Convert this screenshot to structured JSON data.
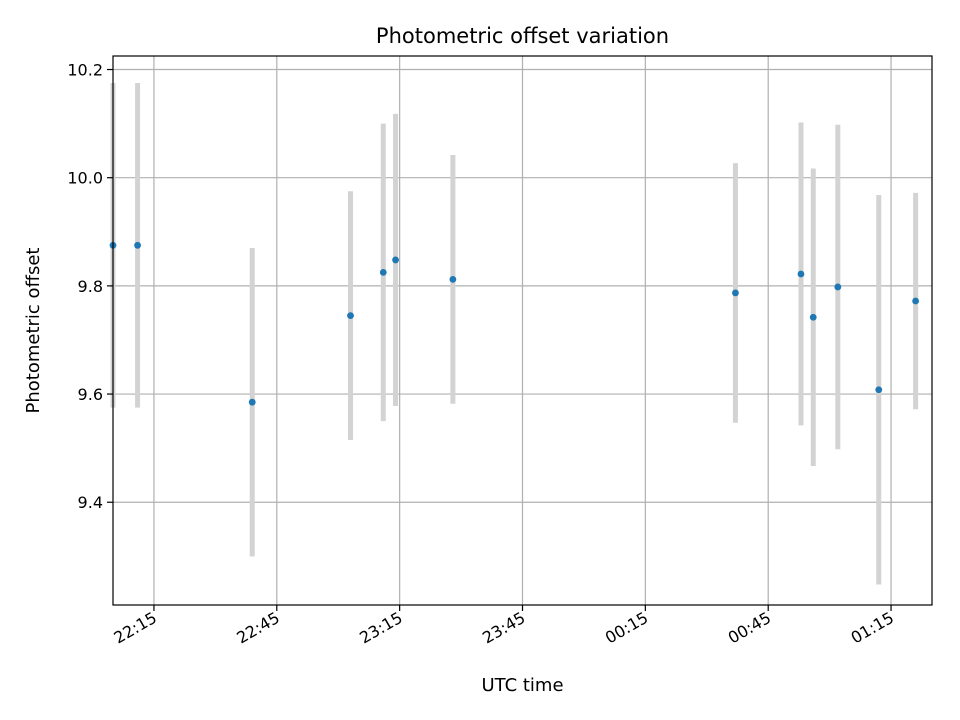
{
  "chart_data": {
    "type": "scatter",
    "title": "Photometric offset variation",
    "xlabel": "UTC time",
    "ylabel": "Photometric offset",
    "x_axis_kind": "time",
    "x_tick_labels": [
      "22:15",
      "22:45",
      "23:15",
      "23:45",
      "00:15",
      "00:45",
      "01:15"
    ],
    "y_ticks": [
      9.4,
      9.6,
      9.8,
      10.0,
      10.2
    ],
    "y_tick_labels": [
      "9.4",
      "9.6",
      "9.8",
      "10.0",
      "10.2"
    ],
    "ylim": [
      9.21,
      10.225
    ],
    "xlim": [
      "22:05",
      "01:25"
    ],
    "grid": true,
    "point_color": "#1f77b4",
    "errorbar_color": "#d3d3d3",
    "points": [
      {
        "x": "22:05",
        "y": 9.875,
        "yerr": 0.3
      },
      {
        "x": "22:11",
        "y": 9.875,
        "yerr": 0.3
      },
      {
        "x": "22:39",
        "y": 9.585,
        "yerr": 0.285
      },
      {
        "x": "23:03",
        "y": 9.745,
        "yerr": 0.23
      },
      {
        "x": "23:11",
        "y": 9.825,
        "yerr": 0.275
      },
      {
        "x": "23:14",
        "y": 9.848,
        "yerr": 0.27
      },
      {
        "x": "23:28",
        "y": 9.812,
        "yerr": 0.23
      },
      {
        "x": "00:37",
        "y": 9.787,
        "yerr": 0.24
      },
      {
        "x": "00:53",
        "y": 9.822,
        "yerr": 0.28
      },
      {
        "x": "00:56",
        "y": 9.742,
        "yerr": 0.275
      },
      {
        "x": "01:02",
        "y": 9.798,
        "yerr": 0.3
      },
      {
        "x": "01:12",
        "y": 9.608,
        "yerr": 0.36
      },
      {
        "x": "01:21",
        "y": 9.772,
        "yerr": 0.2
      }
    ]
  }
}
